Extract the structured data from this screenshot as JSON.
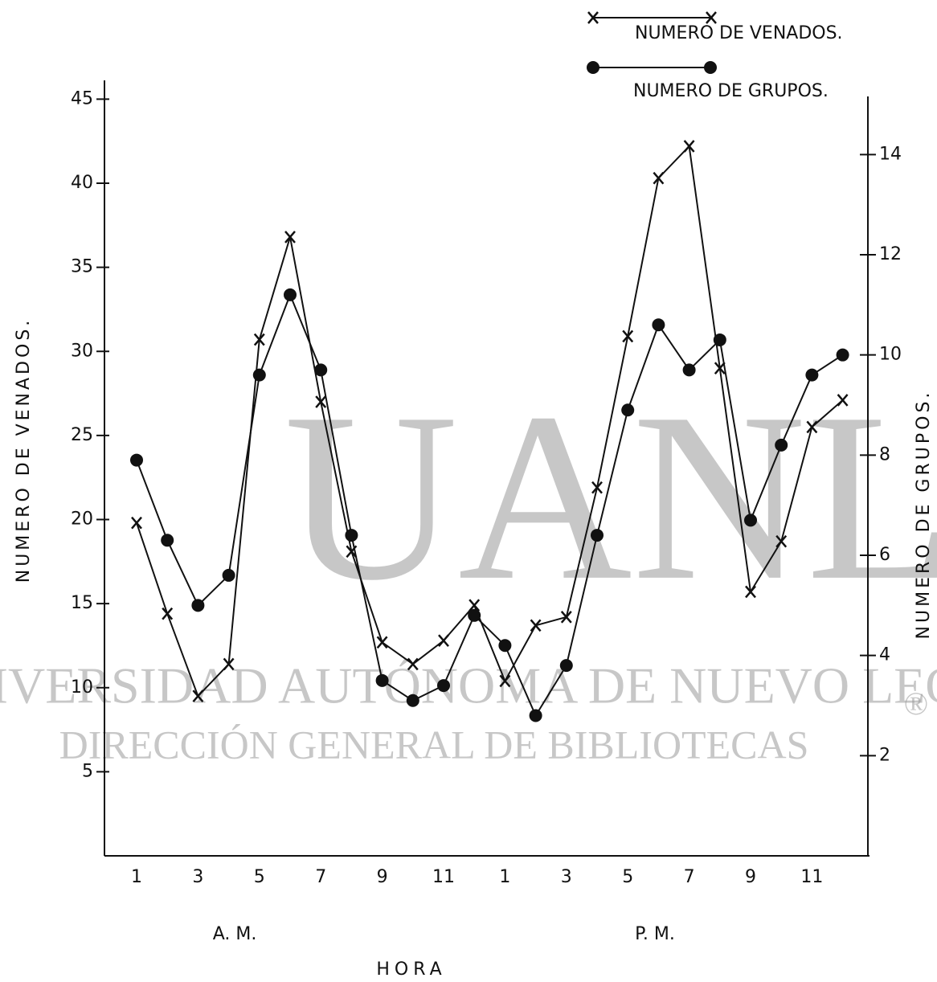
{
  "chart_data": {
    "type": "line",
    "ylabel": "NUMERO  DE  VENADOS.",
    "y2label": "NUMERO  DE  GRUPOS.",
    "xlabel": "HORA",
    "annotations": [
      "A. M.",
      "P. M."
    ],
    "categories": [
      "1",
      null,
      "3",
      null,
      "5",
      null,
      "7",
      null,
      "9",
      null,
      "11",
      null,
      "1",
      null,
      "3",
      null,
      "5",
      null,
      "7",
      null,
      "9",
      null,
      "11",
      null
    ],
    "series": [
      {
        "name": "NUMERO DE VENADOS.",
        "color": "#111111",
        "marker": "x",
        "values": [
          19.8,
          14.4,
          9.5,
          11.4,
          30.7,
          36.8,
          27,
          18.1,
          12.7,
          11.4,
          12.8,
          14.9,
          10.4,
          13.7,
          14.2,
          21.9,
          30.9,
          40.3,
          42.2,
          29,
          15.7,
          18.7,
          25.5,
          27.1
        ]
      },
      {
        "name": "NUMERO DE GRUPOS.",
        "color": "#111111",
        "marker": "dot",
        "axis": "y2",
        "values": [
          7.9,
          6.3,
          5,
          5.6,
          9.6,
          11.2,
          9.7,
          6.4,
          3.5,
          3.1,
          3.4,
          4.8,
          4.2,
          2.8,
          3.8,
          6.4,
          8.9,
          10.6,
          9.7,
          10.3,
          6.7,
          8.2,
          9.6,
          10
        ]
      }
    ],
    "ylim": [
      0,
      46.5
    ],
    "yticks": [
      5,
      10,
      15,
      20,
      25,
      30,
      35,
      40,
      45
    ],
    "y2lim": [
      0,
      15
    ],
    "y2ticks": [
      2,
      4,
      6,
      8,
      10,
      12,
      14
    ],
    "grid": false,
    "legend": "top-right"
  },
  "watermark": {
    "logo": "UANL",
    "line1": "UNIVERSIDAD AUTÓNOMA DE NUEVO LEÓN",
    "line2": "DIRECCIÓN GENERAL DE BIBLIOTECAS",
    "mark": "®"
  }
}
